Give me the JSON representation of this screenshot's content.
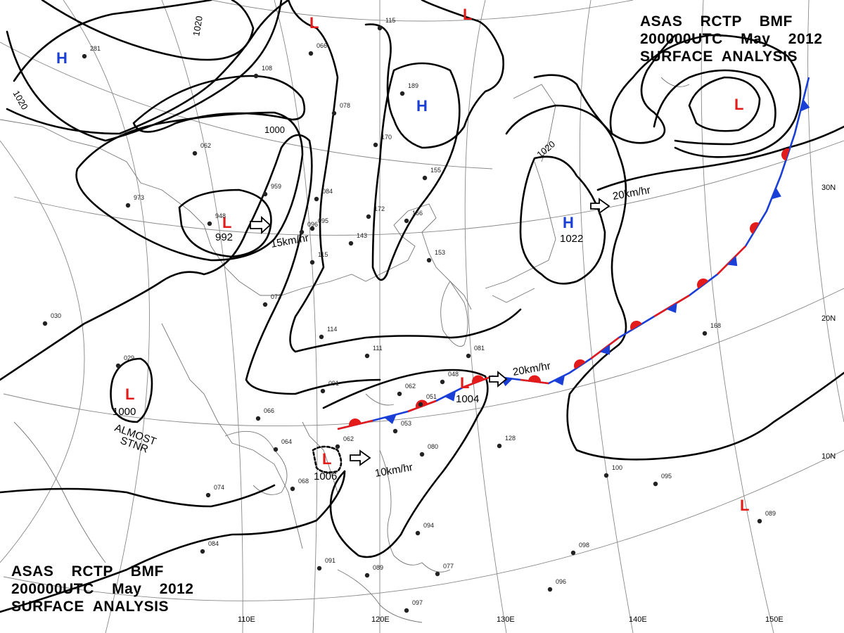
{
  "header": {
    "line1": "ASAS    RCTP    BMF",
    "line2": "200000UTC    May    2012",
    "line3": "SURFACE  ANALYSIS"
  },
  "lon_labels": [
    "110E",
    "120E",
    "130E",
    "140E",
    "150E"
  ],
  "lat_labels": [
    "30N",
    "20N",
    "10N"
  ],
  "isobar_labels": [
    "1020",
    "1020",
    "1000",
    "1020"
  ],
  "pressure_centers": [
    {
      "type": "H",
      "value": "",
      "color": "#1a3fd6"
    },
    {
      "type": "L",
      "value": "",
      "color": "#e31b1b"
    },
    {
      "type": "L",
      "value": "",
      "color": "#e31b1b"
    },
    {
      "type": "H",
      "value": "",
      "color": "#1a3fd6"
    },
    {
      "type": "L",
      "value": "992",
      "color": "#e31b1b"
    },
    {
      "type": "H",
      "value": "1022",
      "color": "#1a3fd6"
    },
    {
      "type": "L",
      "value": "",
      "color": "#e31b1b"
    },
    {
      "type": "L",
      "value": "1000",
      "color": "#e31b1b"
    },
    {
      "type": "L",
      "value": "1004",
      "color": "#e31b1b"
    },
    {
      "type": "L",
      "value": "1006",
      "color": "#e31b1b"
    },
    {
      "type": "L",
      "value": "",
      "color": "#e31b1b"
    }
  ],
  "motions": [
    "15km/hr",
    "20km/hr",
    "20km/hr",
    "10km/hr"
  ],
  "annotations": [
    "ALMOST",
    "STNR"
  ],
  "front_colors": {
    "cold": "#1a3fd6",
    "warm": "#e31b1b"
  },
  "station_values": [
    "281",
    "078",
    "115",
    "066",
    "108",
    "189",
    "170",
    "155",
    "172",
    "166",
    "143",
    "153",
    "096",
    "973",
    "948",
    "959",
    "084",
    "095",
    "115",
    "062",
    "073",
    "114",
    "111",
    "081",
    "091",
    "062",
    "051",
    "053",
    "048",
    "066",
    "064",
    "062",
    "080",
    "128",
    "068",
    "074",
    "029",
    "030",
    "168",
    "100",
    "095",
    "089",
    "098",
    "096",
    "077",
    "091",
    "097",
    "084",
    "094",
    "089"
  ]
}
